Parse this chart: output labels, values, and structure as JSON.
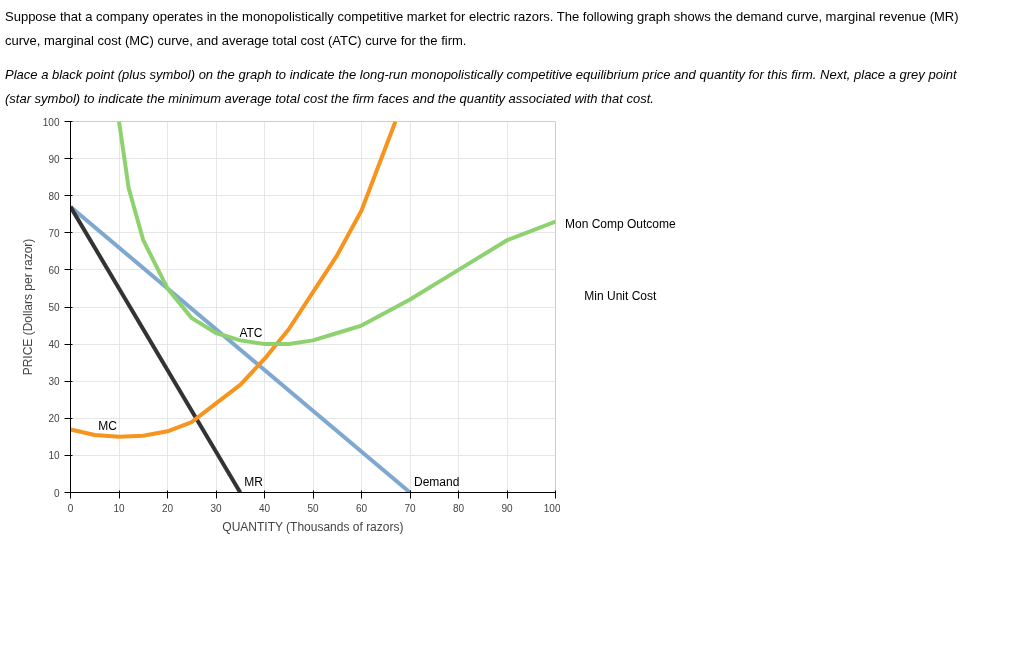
{
  "chart_data": {
    "type": "line",
    "title": "Suppose that a company operates in the monopolistically competitive market for electric razors. The following graph shows the demand curve, marginal revenue (MR) curve, marginal cost (MC) curve, and average total cost (ATC) curve for the firm.",
    "subtitle": "Place a black point (plus symbol) on the graph to indicate the long-run monopolistically competitive equilibrium price and quantity for this firm. Next, place a grey point (star symbol) to indicate the minimum average total cost the firm faces and the quantity associated with that cost.",
    "xlabel": "QUANTITY (Thousands of razors)",
    "ylabel": "PRICE (Dollars per razor)",
    "xlim": [
      0,
      100
    ],
    "ylim": [
      0,
      100
    ],
    "xticks": [
      0,
      10,
      20,
      30,
      40,
      50,
      60,
      70,
      80,
      90,
      100
    ],
    "yticks": [
      0,
      10,
      20,
      30,
      40,
      50,
      60,
      70,
      80,
      90,
      100
    ],
    "grid": true,
    "marker": "none",
    "line_style": "solid",
    "series": [
      {
        "name": "Demand",
        "color": "#7fa8d1",
        "x": [
          0,
          70
        ],
        "values": [
          77,
          0
        ]
      },
      {
        "name": "MR",
        "color": "#333333",
        "x": [
          0,
          35
        ],
        "values": [
          77,
          0
        ]
      },
      {
        "name": "MC",
        "color": "#f7941d",
        "x": [
          0,
          5,
          10,
          15,
          20,
          25,
          30,
          35,
          40,
          45,
          50,
          55,
          60,
          67
        ],
        "values": [
          17,
          15.5,
          15,
          15.3,
          16.5,
          19,
          24,
          29,
          36,
          44,
          54,
          64,
          76,
          100
        ]
      },
      {
        "name": "ATC",
        "color": "#8ed16f",
        "x": [
          10,
          12,
          15,
          20,
          25,
          30,
          35,
          40,
          45,
          50,
          55,
          60,
          70,
          80,
          90,
          100
        ],
        "values": [
          100,
          82,
          68,
          55,
          47,
          43,
          41,
          40,
          40,
          41,
          43,
          45,
          52,
          60,
          68,
          73
        ]
      }
    ],
    "annotations": [
      "Mon Comp Outcome",
      "Min Unit Cost"
    ]
  }
}
